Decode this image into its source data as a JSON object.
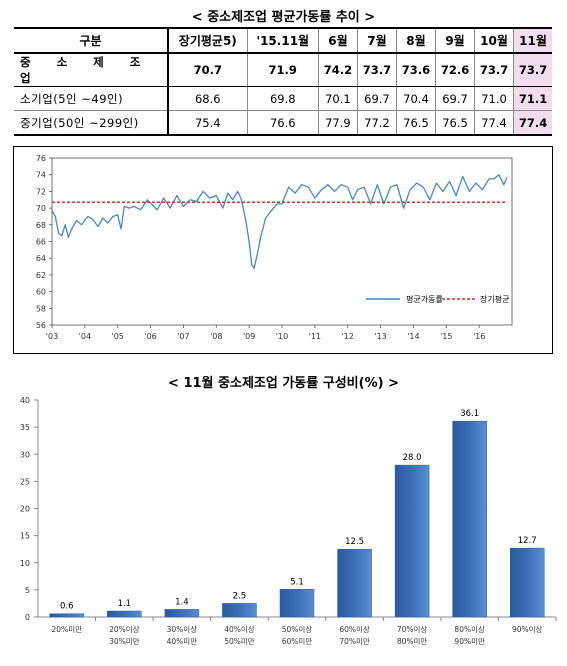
{
  "titles": {
    "top": "< 중소제조업 평균가동률 추이 >",
    "bottom": "< 11월 중소제조업 가동률 구성비(%) >"
  },
  "table": {
    "corner": "구분",
    "headers": [
      "장기평균5)",
      "'15.11월",
      "6월",
      "7월",
      "8월",
      "9월",
      "10월",
      "11월"
    ],
    "rows": [
      {
        "label": "중 소 제 조 업",
        "values": [
          "70.7",
          "71.9",
          "74.2",
          "73.7",
          "73.6",
          "72.6",
          "73.7",
          "73.7"
        ]
      },
      {
        "label": "소기업(5인 ~49인)",
        "values": [
          "68.6",
          "69.8",
          "70.1",
          "69.7",
          "70.4",
          "69.7",
          "71.0",
          "71.1"
        ]
      },
      {
        "label": "중기업(50인 ~299인)",
        "values": [
          "75.4",
          "76.6",
          "77.9",
          "77.2",
          "76.5",
          "76.5",
          "77.4",
          "77.4"
        ]
      }
    ],
    "highlight_color": "#f2dcef"
  },
  "chart_data": [
    {
      "type": "line",
      "ylim": [
        56,
        76
      ],
      "yticks": [
        56,
        58,
        60,
        62,
        64,
        66,
        68,
        70,
        72,
        74,
        76
      ],
      "xlabels": [
        "'03",
        "'04",
        "'05",
        "'06",
        "'07",
        "'08",
        "'09",
        "'10",
        "'11",
        "'12",
        "'13",
        "'14",
        "'15",
        "'16"
      ],
      "x_start_year": 2003,
      "grid": false,
      "legend_position": "bottom-right",
      "series": [
        {
          "name": "평균가동률",
          "color": "#4a86c8",
          "x": [
            2003.0,
            2003.1,
            2003.2,
            2003.3,
            2003.4,
            2003.5,
            2003.6,
            2003.75,
            2003.9,
            2004.0,
            2004.1,
            2004.25,
            2004.4,
            2004.55,
            2004.7,
            2004.85,
            2005.0,
            2005.1,
            2005.2,
            2005.35,
            2005.5,
            2005.7,
            2005.9,
            2006.0,
            2006.2,
            2006.4,
            2006.6,
            2006.8,
            2007.0,
            2007.2,
            2007.4,
            2007.6,
            2007.8,
            2008.0,
            2008.2,
            2008.35,
            2008.5,
            2008.65,
            2008.75,
            2008.85,
            2008.92,
            2009.0,
            2009.08,
            2009.15,
            2009.25,
            2009.35,
            2009.5,
            2009.7,
            2009.85,
            2010.0,
            2010.2,
            2010.4,
            2010.6,
            2010.8,
            2011.0,
            2011.2,
            2011.4,
            2011.6,
            2011.8,
            2012.0,
            2012.15,
            2012.3,
            2012.5,
            2012.7,
            2012.9,
            2013.1,
            2013.3,
            2013.5,
            2013.7,
            2013.9,
            2014.1,
            2014.3,
            2014.5,
            2014.7,
            2014.9,
            2015.1,
            2015.3,
            2015.5,
            2015.7,
            2015.9,
            2016.1,
            2016.3,
            2016.45,
            2016.6,
            2016.75,
            2016.85
          ],
          "y": [
            69.7,
            69.0,
            67.0,
            66.7,
            68.0,
            66.5,
            67.5,
            68.5,
            68.0,
            68.6,
            69.0,
            68.6,
            67.8,
            68.8,
            68.2,
            69.0,
            69.2,
            67.5,
            70.2,
            70.0,
            70.2,
            69.8,
            71.0,
            70.6,
            69.8,
            71.2,
            70.0,
            71.5,
            70.2,
            71.0,
            70.8,
            72.0,
            71.2,
            71.5,
            70.0,
            71.8,
            71.0,
            72.0,
            71.2,
            69.5,
            68.0,
            66.0,
            63.2,
            62.8,
            64.5,
            66.5,
            68.8,
            69.8,
            70.5,
            70.5,
            72.5,
            71.8,
            72.8,
            72.5,
            71.2,
            72.2,
            72.8,
            72.0,
            72.8,
            72.5,
            71.0,
            72.2,
            72.5,
            70.5,
            72.8,
            70.5,
            72.5,
            72.8,
            70.0,
            72.2,
            73.0,
            72.5,
            71.0,
            73.0,
            72.0,
            73.2,
            71.5,
            73.8,
            72.0,
            73.0,
            72.2,
            73.5,
            73.5,
            74.0,
            72.8,
            73.7
          ]
        },
        {
          "name": "장기평균",
          "color": "#c0392b",
          "x": [
            2003.0,
            2016.85
          ],
          "y": [
            70.7,
            70.7
          ]
        }
      ]
    },
    {
      "type": "bar",
      "categories": [
        "20%미만",
        "20%이상\n30%미만",
        "30%이상\n40%미만",
        "40%이상\n50%미만",
        "50%이상\n60%미만",
        "60%이상\n70%미만",
        "70%이상\n80%미만",
        "80%이상\n90%미만",
        "90%이상"
      ],
      "values": [
        0.6,
        1.1,
        1.4,
        2.5,
        5.1,
        12.5,
        28.0,
        36.1,
        12.7
      ],
      "value_labels": [
        "0.6",
        "1.1",
        "1.4",
        "2.5",
        "5.1",
        "12.5",
        "28.0",
        "36.1",
        "12.7"
      ],
      "ylim": [
        0,
        40
      ],
      "yticks": [
        0,
        5,
        10,
        15,
        20,
        25,
        30,
        35,
        40
      ],
      "grid": false,
      "bar_color": "#3b6fb6"
    }
  ]
}
